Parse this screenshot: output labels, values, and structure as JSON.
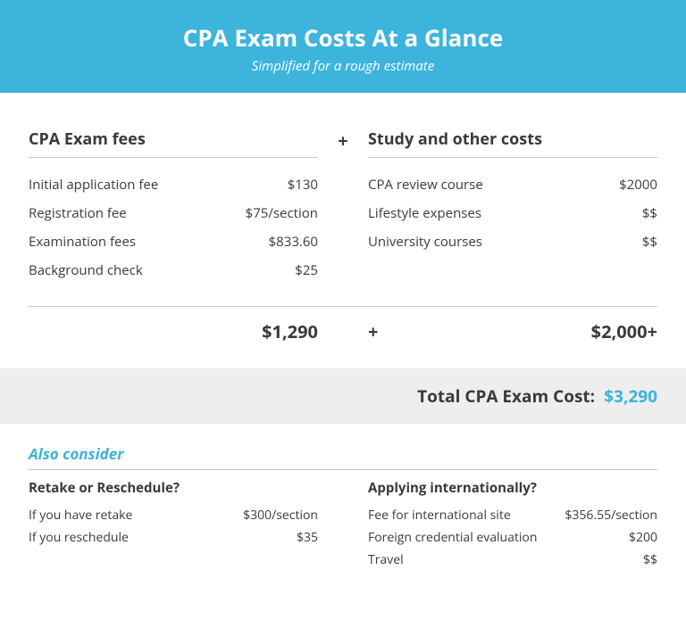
{
  "colors": {
    "header_bg": "#3cb4dc",
    "header_text": "#ffffff",
    "text": "#3a3a3a",
    "accent": "#3cb4dc",
    "total_bg": "#eeeeee",
    "divider": "#c8c8c8"
  },
  "header": {
    "title": "CPA Exam Costs At a Glance",
    "subtitle": "Simplified for a rough estimate"
  },
  "fees": {
    "title": "CPA Exam fees",
    "rows": [
      {
        "label": "Initial application fee",
        "value": "$130"
      },
      {
        "label": "Registration fee",
        "value": "$75/section"
      },
      {
        "label": "Examination fees",
        "value": "$833.60"
      },
      {
        "label": "Background check",
        "value": "$25"
      }
    ],
    "subtotal": "$1,290"
  },
  "study": {
    "title": "Study and other costs",
    "rows": [
      {
        "label": "CPA review course",
        "value": "$2000"
      },
      {
        "label": "Lifestyle expenses",
        "value": "$$"
      },
      {
        "label": "University courses",
        "value": "$$"
      }
    ],
    "subtotal": "$2,000+",
    "plus": "+"
  },
  "plus_symbol": "+",
  "total": {
    "label": "Total CPA Exam Cost:",
    "value": "$3,290"
  },
  "consider": {
    "title": "Also consider",
    "retake": {
      "title": "Retake or Reschedule?",
      "rows": [
        {
          "label": "If you have retake",
          "value": "$300/section"
        },
        {
          "label": "If you reschedule",
          "value": "$35"
        }
      ]
    },
    "intl": {
      "title": "Applying internationally?",
      "rows": [
        {
          "label": "Fee for international site",
          "value": "$356.55/section"
        },
        {
          "label": "Foreign credential evaluation",
          "value": "$200"
        },
        {
          "label": "Travel",
          "value": "$$"
        }
      ]
    }
  }
}
